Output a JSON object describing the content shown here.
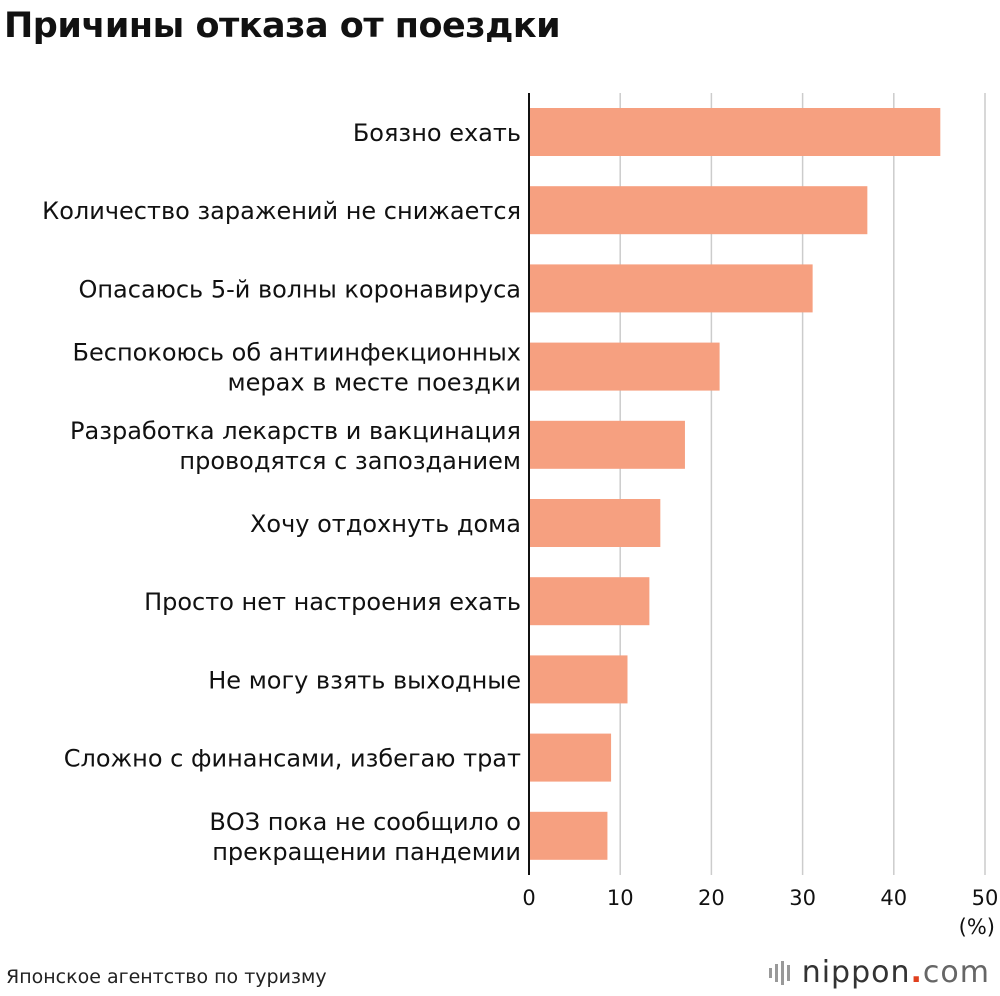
{
  "chart_data": {
    "type": "bar",
    "orientation": "horizontal",
    "title": "Причины отказа от поездки",
    "categories": [
      [
        "Боязно ехать"
      ],
      [
        "Количество заражений не снижается"
      ],
      [
        "Опасаюсь 5-й волны коронавируса"
      ],
      [
        "Беспокоюсь об антиинфекционных",
        "мерах в месте поездки"
      ],
      [
        "Разработка лекарств и вакцинация",
        "проводятся с запозданием"
      ],
      [
        "Хочу отдохнуть дома"
      ],
      [
        "Просто нет настроения ехать"
      ],
      [
        "Не могу взять выходные"
      ],
      [
        "Сложно с финансами, избегаю трат"
      ],
      [
        "ВОЗ пока не сообщило о",
        "прекращении пандемии"
      ]
    ],
    "values": [
      45.1,
      37.1,
      31.1,
      20.9,
      17.1,
      14.4,
      13.2,
      10.8,
      9.0,
      8.6
    ],
    "xlim": [
      0,
      50
    ],
    "xticks": [
      "0",
      "10",
      "20",
      "30",
      "40",
      "50"
    ],
    "xlabel": "(%)",
    "grid": true,
    "bar_color": "#f6a080"
  },
  "source": "Японское агентство по туризму",
  "logo": {
    "name": "nippon",
    "dot": ".",
    "suffix": "com"
  }
}
